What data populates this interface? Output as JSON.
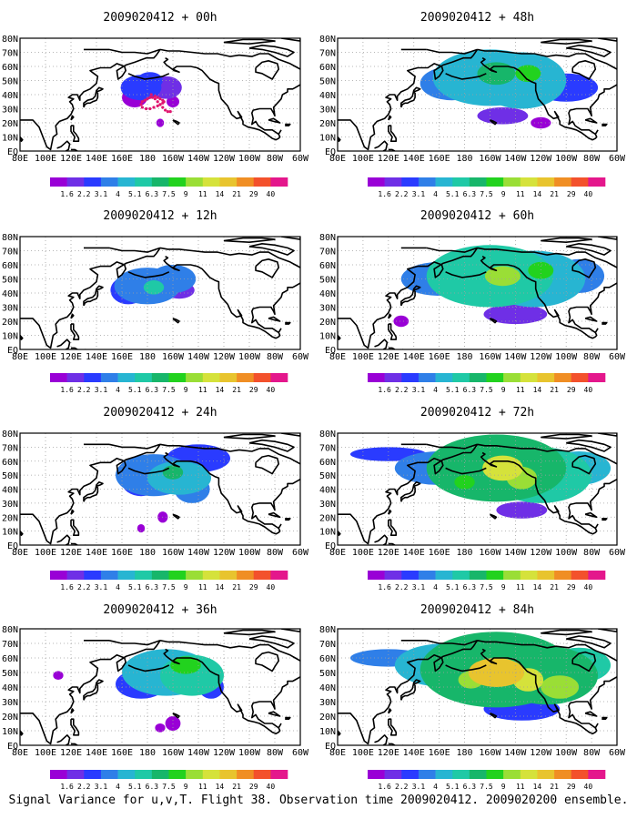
{
  "figure": {
    "caption": "Signal Variance for u,v,T. Flight 38. Observation time 2009020412. 2009020200 ensemble.",
    "colors": {
      "land_outline": "#000000",
      "grid": "#a0a0a0",
      "frame": "#000000",
      "track": "#e0156f"
    }
  },
  "colorbar": {
    "labels": [
      "1.6",
      "2.2",
      "3.1",
      "4",
      "5.1",
      "6.3",
      "7.5",
      "9",
      "11",
      "14",
      "21",
      "29",
      "40"
    ],
    "colors": [
      "#9900d6",
      "#6f2fe6",
      "#2a3bff",
      "#2f7fe8",
      "#27b5d2",
      "#1fc9a6",
      "#17b66a",
      "#22d21e",
      "#9ade36",
      "#d5e23b",
      "#e8c42e",
      "#f08e24",
      "#f3512c",
      "#e4178c"
    ]
  },
  "axes": {
    "x_ticks": [
      "80E",
      "100E",
      "120E",
      "140E",
      "160E",
      "180",
      "160W",
      "140W",
      "120W",
      "100W",
      "80W",
      "60W"
    ],
    "y_ticks": [
      "EQ",
      "10N",
      "20N",
      "30N",
      "40N",
      "50N",
      "60N",
      "70N",
      "80N"
    ],
    "lon_range_deg_east": [
      80,
      300
    ],
    "lat_range_deg": [
      0,
      80
    ]
  },
  "panels": [
    {
      "title": "2009020412 + 00h",
      "max_level": 3
    },
    {
      "title": "2009020412 + 12h",
      "max_level": 5
    },
    {
      "title": "2009020412 + 24h",
      "max_level": 6
    },
    {
      "title": "2009020412 + 36h",
      "max_level": 7
    },
    {
      "title": "2009020412 + 48h",
      "max_level": 7
    },
    {
      "title": "2009020412 + 60h",
      "max_level": 8
    },
    {
      "title": "2009020412 + 72h",
      "max_level": 9
    },
    {
      "title": "2009020412 + 84h",
      "max_level": 10
    }
  ]
}
